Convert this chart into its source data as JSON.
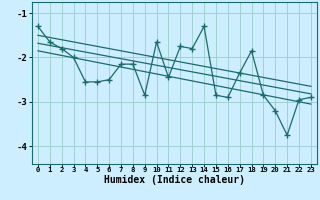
{
  "title": "",
  "xlabel": "Humidex (Indice chaleur)",
  "bg_color": "#cceeff",
  "line_color": "#1a6b6b",
  "grid_color": "#99cccc",
  "xlim": [
    -0.5,
    23.5
  ],
  "ylim": [
    -4.4,
    -0.75
  ],
  "yticks": [
    -4,
    -3,
    -2,
    -1
  ],
  "xticks": [
    0,
    1,
    2,
    3,
    4,
    5,
    6,
    7,
    8,
    9,
    10,
    11,
    12,
    13,
    14,
    15,
    16,
    17,
    18,
    19,
    20,
    21,
    22,
    23
  ],
  "data_x": [
    0,
    1,
    2,
    3,
    4,
    5,
    6,
    7,
    8,
    9,
    10,
    11,
    12,
    13,
    14,
    15,
    16,
    17,
    18,
    19,
    20,
    21,
    22,
    23
  ],
  "data_y": [
    -1.3,
    -1.65,
    -1.8,
    -2.0,
    -2.55,
    -2.55,
    -2.5,
    -2.15,
    -2.15,
    -2.85,
    -1.65,
    -2.45,
    -1.75,
    -1.8,
    -1.3,
    -2.85,
    -2.9,
    -2.35,
    -1.85,
    -2.85,
    -3.2,
    -3.75,
    -2.95,
    -2.9
  ],
  "trend1_x": [
    0,
    23
  ],
  "trend1_y": [
    -1.5,
    -2.65
  ],
  "trend2_x": [
    0,
    23
  ],
  "trend2_y": [
    -1.68,
    -2.82
  ],
  "trend3_x": [
    0,
    23
  ],
  "trend3_y": [
    -1.85,
    -3.05
  ]
}
